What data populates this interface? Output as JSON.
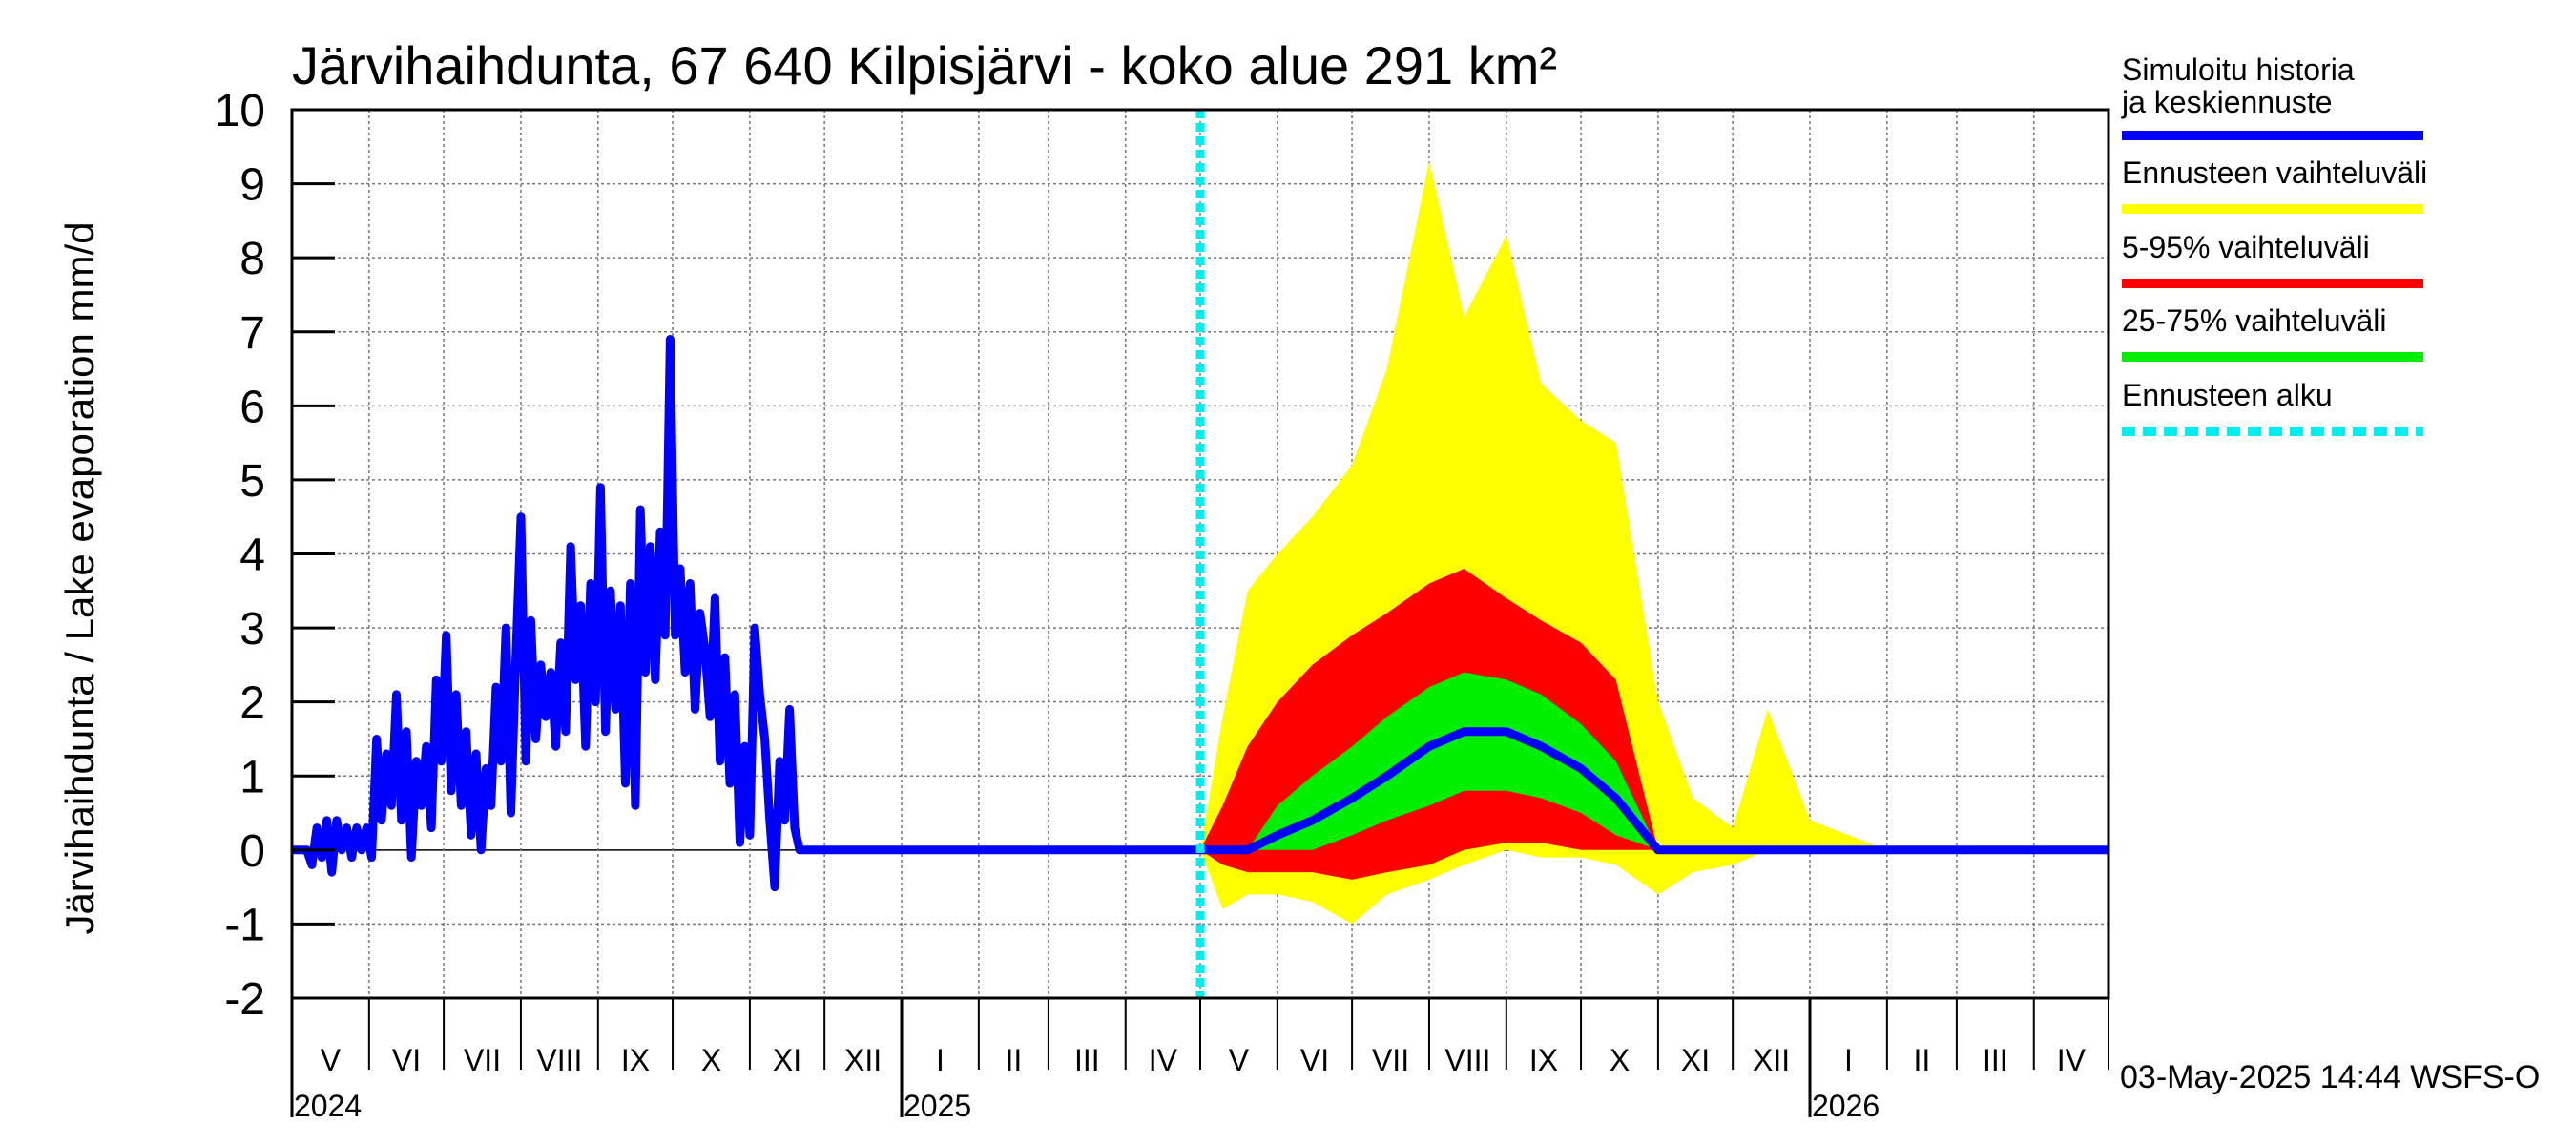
{
  "chart_data": {
    "type": "area",
    "title": "Järvihaihdunta, 67 640 Kilpisjärvi - koko alue 291 km²",
    "ylabel": "Järvihaihdunta / Lake evaporation   mm/d",
    "ylim": [
      -2,
      10
    ],
    "yticks": [
      -2,
      -1,
      0,
      1,
      2,
      3,
      4,
      5,
      6,
      7,
      8,
      9,
      10
    ],
    "xlim": [
      "2024-05-01",
      "2026-05-01"
    ],
    "x_months": [
      "V",
      "VI",
      "VII",
      "VIII",
      "IX",
      "X",
      "XI",
      "XII",
      "I",
      "II",
      "III",
      "IV",
      "V",
      "VI",
      "VII",
      "VIII",
      "IX",
      "X",
      "XI",
      "XII",
      "I",
      "II",
      "III",
      "IV"
    ],
    "x_years": [
      {
        "label": "2024",
        "month_index": 0
      },
      {
        "label": "2025",
        "month_index": 8
      },
      {
        "label": "2026",
        "month_index": 20
      }
    ],
    "grid": true,
    "forecast_start": "2025-05-01",
    "legend_position": "right",
    "legend": [
      {
        "label": "Simuloitu historia ja keskiennuste",
        "color": "#0000ff",
        "style": "solid"
      },
      {
        "label": "Ennusteen vaihteluväli",
        "color": "#ffff00",
        "style": "solid"
      },
      {
        "label": "5-95% vaihteluväli",
        "color": "#ff0000",
        "style": "solid"
      },
      {
        "label": "25-75% vaihteluväli",
        "color": "#00ee00",
        "style": "solid"
      },
      {
        "label": "Ennusteen alku",
        "color": "#00eeee",
        "style": "dashed"
      }
    ],
    "history": {
      "name": "Simuloitu historia ja keskiennuste",
      "points": [
        [
          "2024-05-01",
          0
        ],
        [
          "2024-05-07",
          0
        ],
        [
          "2024-05-09",
          -0.2
        ],
        [
          "2024-05-11",
          0.3
        ],
        [
          "2024-05-13",
          -0.1
        ],
        [
          "2024-05-15",
          0.4
        ],
        [
          "2024-05-17",
          -0.3
        ],
        [
          "2024-05-19",
          0.4
        ],
        [
          "2024-05-21",
          0
        ],
        [
          "2024-05-23",
          0.3
        ],
        [
          "2024-05-25",
          -0.1
        ],
        [
          "2024-05-27",
          0.3
        ],
        [
          "2024-05-29",
          0
        ],
        [
          "2024-05-31",
          0.3
        ],
        [
          "2024-06-02",
          -0.1
        ],
        [
          "2024-06-04",
          1.5
        ],
        [
          "2024-06-06",
          0.4
        ],
        [
          "2024-06-08",
          1.3
        ],
        [
          "2024-06-10",
          0.6
        ],
        [
          "2024-06-12",
          2.1
        ],
        [
          "2024-06-14",
          0.4
        ],
        [
          "2024-06-16",
          1.6
        ],
        [
          "2024-06-18",
          -0.1
        ],
        [
          "2024-06-20",
          1.2
        ],
        [
          "2024-06-22",
          0.6
        ],
        [
          "2024-06-24",
          1.4
        ],
        [
          "2024-06-26",
          0.3
        ],
        [
          "2024-06-28",
          2.3
        ],
        [
          "2024-06-30",
          1.2
        ],
        [
          "2024-07-02",
          2.9
        ],
        [
          "2024-07-04",
          0.8
        ],
        [
          "2024-07-06",
          2.1
        ],
        [
          "2024-07-08",
          0.6
        ],
        [
          "2024-07-10",
          1.6
        ],
        [
          "2024-07-12",
          0.2
        ],
        [
          "2024-07-14",
          1.3
        ],
        [
          "2024-07-16",
          0
        ],
        [
          "2024-07-18",
          1.1
        ],
        [
          "2024-07-20",
          0.6
        ],
        [
          "2024-07-22",
          2.2
        ],
        [
          "2024-07-24",
          1.2
        ],
        [
          "2024-07-26",
          3.0
        ],
        [
          "2024-07-28",
          0.5
        ],
        [
          "2024-07-30",
          2.6
        ],
        [
          "2024-08-01",
          4.5
        ],
        [
          "2024-08-03",
          1.2
        ],
        [
          "2024-08-05",
          3.1
        ],
        [
          "2024-08-07",
          1.5
        ],
        [
          "2024-08-09",
          2.5
        ],
        [
          "2024-08-11",
          1.8
        ],
        [
          "2024-08-13",
          2.4
        ],
        [
          "2024-08-15",
          1.4
        ],
        [
          "2024-08-17",
          2.8
        ],
        [
          "2024-08-19",
          1.6
        ],
        [
          "2024-08-21",
          4.1
        ],
        [
          "2024-08-23",
          2.3
        ],
        [
          "2024-08-25",
          3.3
        ],
        [
          "2024-08-27",
          1.4
        ],
        [
          "2024-08-29",
          3.6
        ],
        [
          "2024-08-31",
          2.0
        ],
        [
          "2024-09-02",
          4.9
        ],
        [
          "2024-09-04",
          1.6
        ],
        [
          "2024-09-06",
          3.5
        ],
        [
          "2024-09-08",
          1.9
        ],
        [
          "2024-09-10",
          3.3
        ],
        [
          "2024-09-12",
          0.9
        ],
        [
          "2024-09-14",
          3.6
        ],
        [
          "2024-09-16",
          0.6
        ],
        [
          "2024-09-18",
          4.6
        ],
        [
          "2024-09-20",
          2.4
        ],
        [
          "2024-09-22",
          4.1
        ],
        [
          "2024-09-24",
          2.3
        ],
        [
          "2024-09-26",
          4.3
        ],
        [
          "2024-09-28",
          2.9
        ],
        [
          "2024-09-30",
          6.9
        ],
        [
          "2024-10-02",
          2.9
        ],
        [
          "2024-10-04",
          3.8
        ],
        [
          "2024-10-06",
          2.4
        ],
        [
          "2024-10-08",
          3.6
        ],
        [
          "2024-10-10",
          1.9
        ],
        [
          "2024-10-12",
          3.2
        ],
        [
          "2024-10-14",
          2.7
        ],
        [
          "2024-10-16",
          1.8
        ],
        [
          "2024-10-18",
          3.4
        ],
        [
          "2024-10-20",
          1.2
        ],
        [
          "2024-10-22",
          2.6
        ],
        [
          "2024-10-24",
          0.9
        ],
        [
          "2024-10-26",
          2.1
        ],
        [
          "2024-10-28",
          0.1
        ],
        [
          "2024-10-30",
          1.4
        ],
        [
          "2024-11-01",
          0.2
        ],
        [
          "2024-11-03",
          3.0
        ],
        [
          "2024-11-05",
          2.1
        ],
        [
          "2024-11-07",
          1.5
        ],
        [
          "2024-11-09",
          0.4
        ],
        [
          "2024-11-11",
          -0.5
        ],
        [
          "2024-11-13",
          1.2
        ],
        [
          "2024-11-15",
          0.4
        ],
        [
          "2024-11-17",
          1.9
        ],
        [
          "2024-11-19",
          0.3
        ],
        [
          "2024-11-21",
          0
        ],
        [
          "2025-05-01",
          0
        ]
      ]
    },
    "forecast": {
      "x": [
        "2025-05-01",
        "2025-05-10",
        "2025-05-20",
        "2025-06-01",
        "2025-06-15",
        "2025-07-01",
        "2025-07-15",
        "2025-08-01",
        "2025-08-15",
        "2025-09-01",
        "2025-09-15",
        "2025-10-01",
        "2025-10-15",
        "2025-11-01",
        "2025-11-15",
        "2025-12-01",
        "2025-12-15",
        "2026-01-01",
        "2026-02-01",
        "2026-03-01",
        "2026-04-01",
        "2026-05-01"
      ],
      "mean": [
        0,
        0,
        0,
        0.2,
        0.4,
        0.7,
        1.0,
        1.4,
        1.6,
        1.6,
        1.4,
        1.1,
        0.7,
        0,
        0,
        0,
        0,
        0,
        0,
        0,
        0,
        0
      ],
      "p25": [
        0,
        0,
        0,
        0,
        0,
        0.2,
        0.4,
        0.6,
        0.8,
        0.8,
        0.7,
        0.5,
        0.2,
        0,
        0,
        0,
        0,
        0,
        0,
        0,
        0,
        0
      ],
      "p75": [
        0,
        0,
        0,
        0.6,
        1.0,
        1.4,
        1.8,
        2.2,
        2.4,
        2.3,
        2.1,
        1.7,
        1.2,
        0,
        0,
        0,
        0,
        0,
        0,
        0,
        0,
        0
      ],
      "p05": [
        0,
        -0.2,
        -0.3,
        -0.3,
        -0.3,
        -0.4,
        -0.3,
        -0.2,
        0,
        0.1,
        0.1,
        0,
        0,
        0,
        0,
        0,
        0,
        0,
        0,
        0,
        0,
        0
      ],
      "p95": [
        0,
        0.6,
        1.4,
        2.0,
        2.5,
        2.9,
        3.2,
        3.6,
        3.8,
        3.4,
        3.1,
        2.8,
        2.3,
        0,
        0,
        0,
        0,
        0,
        0,
        0,
        0,
        0
      ],
      "min": [
        0,
        -0.8,
        -0.6,
        -0.6,
        -0.7,
        -1.0,
        -0.6,
        -0.4,
        -0.2,
        0,
        -0.1,
        -0.1,
        -0.2,
        -0.6,
        -0.3,
        -0.2,
        0,
        0,
        0,
        0,
        0,
        0
      ],
      "max": [
        0,
        1.8,
        3.5,
        4.0,
        4.5,
        5.2,
        6.5,
        9.3,
        7.2,
        8.3,
        6.3,
        5.8,
        5.5,
        2.0,
        0.7,
        0.3,
        1.9,
        0.4,
        0,
        0,
        0,
        0
      ]
    },
    "timestamp": "03-May-2025 14:44 WSFS-O"
  }
}
